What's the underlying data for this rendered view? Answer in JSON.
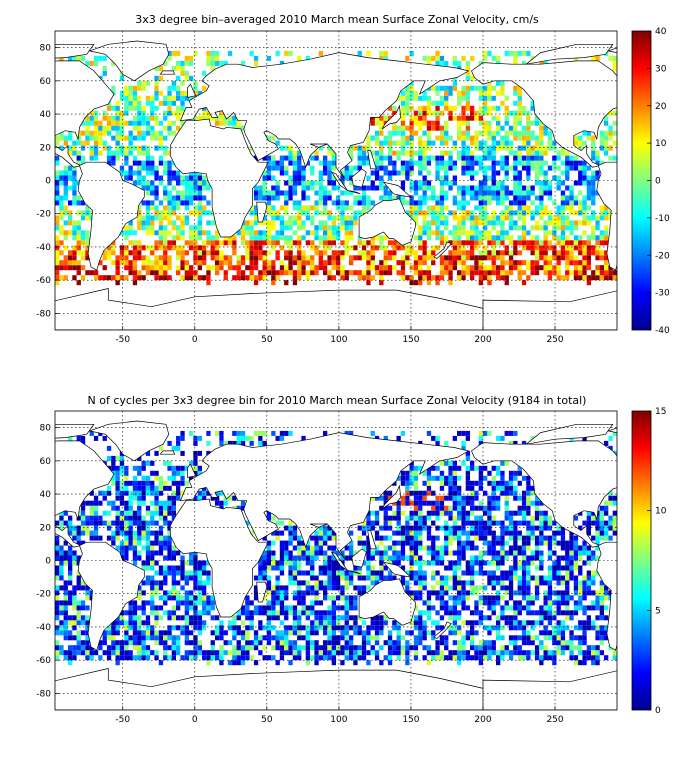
{
  "chart_data": [
    {
      "type": "heatmap",
      "title": "3x3 degree bin–averaged 2010 March mean Surface Zonal Velocity, cm/s",
      "x_ticks": [
        "-50",
        "0",
        "50",
        "100",
        "150",
        "200",
        "250"
      ],
      "y_ticks": [
        "80",
        "60",
        "40",
        "20",
        "0",
        "-20",
        "-40",
        "-60",
        "-80"
      ],
      "xlim": [
        -97,
        293
      ],
      "ylim": [
        -90,
        90
      ],
      "bin_size_deg": 3,
      "colorbar": {
        "ticks": [
          "40",
          "30",
          "20",
          "10",
          "0",
          "-10",
          "-20",
          "-30",
          "-40"
        ],
        "min": -40,
        "max": 40,
        "colormap": "jet"
      }
    },
    {
      "type": "heatmap",
      "title": "N of cycles per 3x3 degree bin for 2010 March mean Surface Zonal Velocity (9184 in total)",
      "x_ticks": [
        "-50",
        "0",
        "50",
        "100",
        "150",
        "200",
        "250"
      ],
      "y_ticks": [
        "80",
        "60",
        "40",
        "20",
        "0",
        "-20",
        "-40",
        "-60",
        "-80"
      ],
      "xlim": [
        -97,
        293
      ],
      "ylim": [
        -90,
        90
      ],
      "bin_size_deg": 3,
      "colorbar": {
        "ticks": [
          "15",
          "10",
          "5",
          "0"
        ],
        "min": 0,
        "max": 15,
        "colormap": "jet"
      }
    }
  ]
}
